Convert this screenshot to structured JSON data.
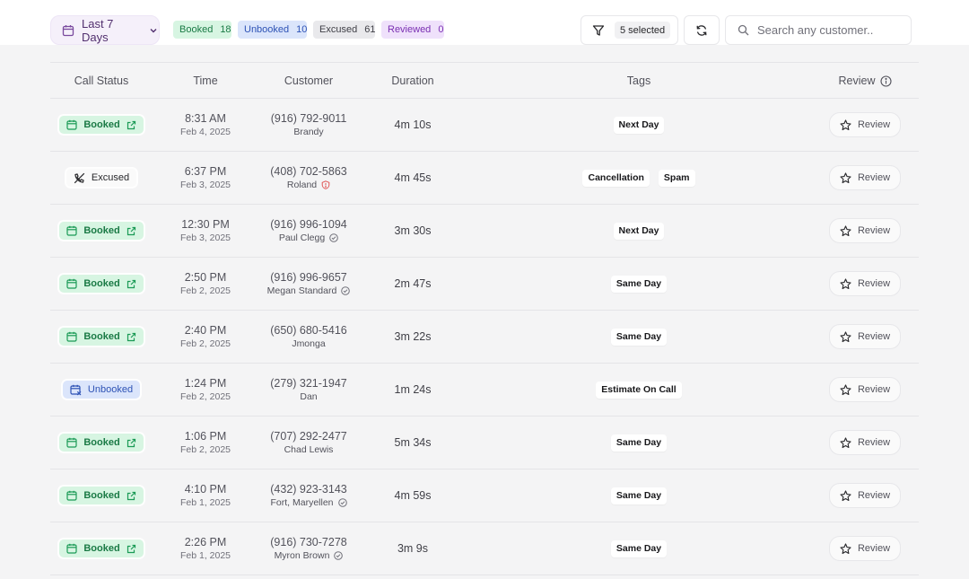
{
  "toolbar": {
    "date_range": "Last 7 Days",
    "counts": [
      {
        "label": "Booked",
        "count": "18"
      },
      {
        "label": "Unbooked",
        "count": "10"
      },
      {
        "label": "Excused",
        "count": "61"
      },
      {
        "label": "Reviewed",
        "count": "0"
      }
    ],
    "filter_selected": "5 selected",
    "search_placeholder": "Search any customer.."
  },
  "columns": {
    "status": "Call Status",
    "time": "Time",
    "customer": "Customer",
    "duration": "Duration",
    "tags": "Tags",
    "review": "Review"
  },
  "rows": [
    {
      "status": "Booked",
      "time": "8:31 AM",
      "date": "Feb 4, 2025",
      "phone": "(916) 792-9011",
      "name": "Brandy",
      "name_icon": "",
      "duration": "4m 10s",
      "tags": [
        "Next Day"
      ],
      "review": "Review"
    },
    {
      "status": "Excused",
      "time": "6:37 PM",
      "date": "Feb 3, 2025",
      "phone": "(408) 702-5863",
      "name": "Roland",
      "name_icon": "alert-shield-icon",
      "duration": "4m 45s",
      "tags": [
        "Cancellation",
        "Spam"
      ],
      "review": "Review"
    },
    {
      "status": "Booked",
      "time": "12:30 PM",
      "date": "Feb 3, 2025",
      "phone": "(916) 996-1094",
      "name": "Paul Clegg",
      "name_icon": "check-circle-icon",
      "duration": "3m 30s",
      "tags": [
        "Next Day"
      ],
      "review": "Review"
    },
    {
      "status": "Booked",
      "time": "2:50 PM",
      "date": "Feb 2, 2025",
      "phone": "(916) 996-9657",
      "name": "Megan Standard",
      "name_icon": "check-circle-icon",
      "duration": "2m 47s",
      "tags": [
        "Same Day"
      ],
      "review": "Review"
    },
    {
      "status": "Booked",
      "time": "2:40 PM",
      "date": "Feb 2, 2025",
      "phone": "(650) 680-5416",
      "name": "Jmonga",
      "name_icon": "",
      "duration": "3m 22s",
      "tags": [
        "Same Day"
      ],
      "review": "Review"
    },
    {
      "status": "Unbooked",
      "time": "1:24 PM",
      "date": "Feb 2, 2025",
      "phone": "(279) 321-1947",
      "name": "Dan",
      "name_icon": "",
      "duration": "1m 24s",
      "tags": [
        "Estimate On Call"
      ],
      "review": "Review"
    },
    {
      "status": "Booked",
      "time": "1:06 PM",
      "date": "Feb 2, 2025",
      "phone": "(707) 292-2477",
      "name": "Chad Lewis",
      "name_icon": "",
      "duration": "5m 34s",
      "tags": [
        "Same Day"
      ],
      "review": "Review"
    },
    {
      "status": "Booked",
      "time": "4:10 PM",
      "date": "Feb 1, 2025",
      "phone": "(432) 923-3143",
      "name": "Fort, Maryellen",
      "name_icon": "check-circle-icon",
      "duration": "4m 59s",
      "tags": [
        "Same Day"
      ],
      "review": "Review"
    },
    {
      "status": "Booked",
      "time": "2:26 PM",
      "date": "Feb 1, 2025",
      "phone": "(916) 730-7278",
      "name": "Myron Brown",
      "name_icon": "check-circle-icon",
      "duration": "3m 9s",
      "tags": [
        "Same Day"
      ],
      "review": "Review"
    }
  ],
  "colors": {
    "booked_bg": "#d7f5e2",
    "booked_fg": "#1a7a45",
    "unbooked_bg": "#dbe5fb",
    "unbooked_fg": "#2d52b5",
    "excused_bg": "#e9e9ec",
    "reviewed_bg": "#efe1fb",
    "reviewed_fg": "#7a2fb2",
    "alert": "#e05252"
  }
}
